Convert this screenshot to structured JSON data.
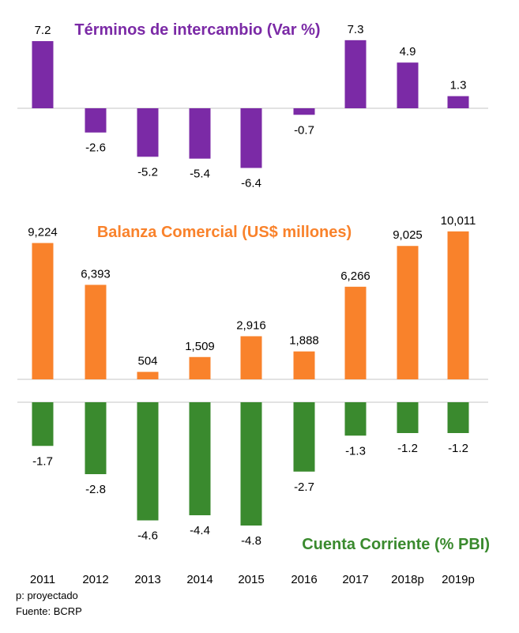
{
  "chart_data": [
    {
      "type": "bar",
      "title": "Términos de intercambio (Var %)",
      "categories": [
        "2011",
        "2012",
        "2013",
        "2014",
        "2015",
        "2016",
        "2017",
        "2018p",
        "2019p"
      ],
      "values": [
        7.2,
        -2.6,
        -5.2,
        -5.4,
        -6.4,
        -0.7,
        7.3,
        4.9,
        1.3
      ],
      "labels": [
        "7.2",
        "-2.6",
        "-5.2",
        "-5.4",
        "-6.4",
        "-0.7",
        "7.3",
        "4.9",
        "1.3"
      ],
      "color": "#7B2AA6",
      "title_color": "#7B2AA6"
    },
    {
      "type": "bar",
      "title": "Balanza Comercial (US$ millones)",
      "categories": [
        "2011",
        "2012",
        "2013",
        "2014",
        "2015",
        "2016",
        "2017",
        "2018p",
        "2019p"
      ],
      "values": [
        9224,
        6393,
        504,
        1509,
        2916,
        1888,
        6266,
        9025,
        10011
      ],
      "labels": [
        "9,224",
        "6,393",
        "504",
        "1,509",
        "2,916",
        "1,888",
        "6,266",
        "9,025",
        "10,011"
      ],
      "color": "#F9822B",
      "title_color": "#F9822B"
    },
    {
      "type": "bar",
      "title": "Cuenta Corriente (% PBI)",
      "categories": [
        "2011",
        "2012",
        "2013",
        "2014",
        "2015",
        "2016",
        "2017",
        "2018p",
        "2019p"
      ],
      "values": [
        -1.7,
        -2.8,
        -4.6,
        -4.4,
        -4.8,
        -2.7,
        -1.3,
        -1.2,
        -1.2
      ],
      "labels": [
        "-1.7",
        "-2.8",
        "-4.6",
        "-4.4",
        "-4.8",
        "-2.7",
        "-1.3",
        "-1.2",
        "-1.2"
      ],
      "color": "#3A8A2E",
      "title_color": "#3A8A2E"
    }
  ],
  "x_axis_labels": [
    "2011",
    "2012",
    "2013",
    "2014",
    "2015",
    "2016",
    "2017",
    "2018p",
    "2019p"
  ],
  "footnotes": {
    "projected": "p: proyectado",
    "source": "Fuente: BCRP"
  }
}
